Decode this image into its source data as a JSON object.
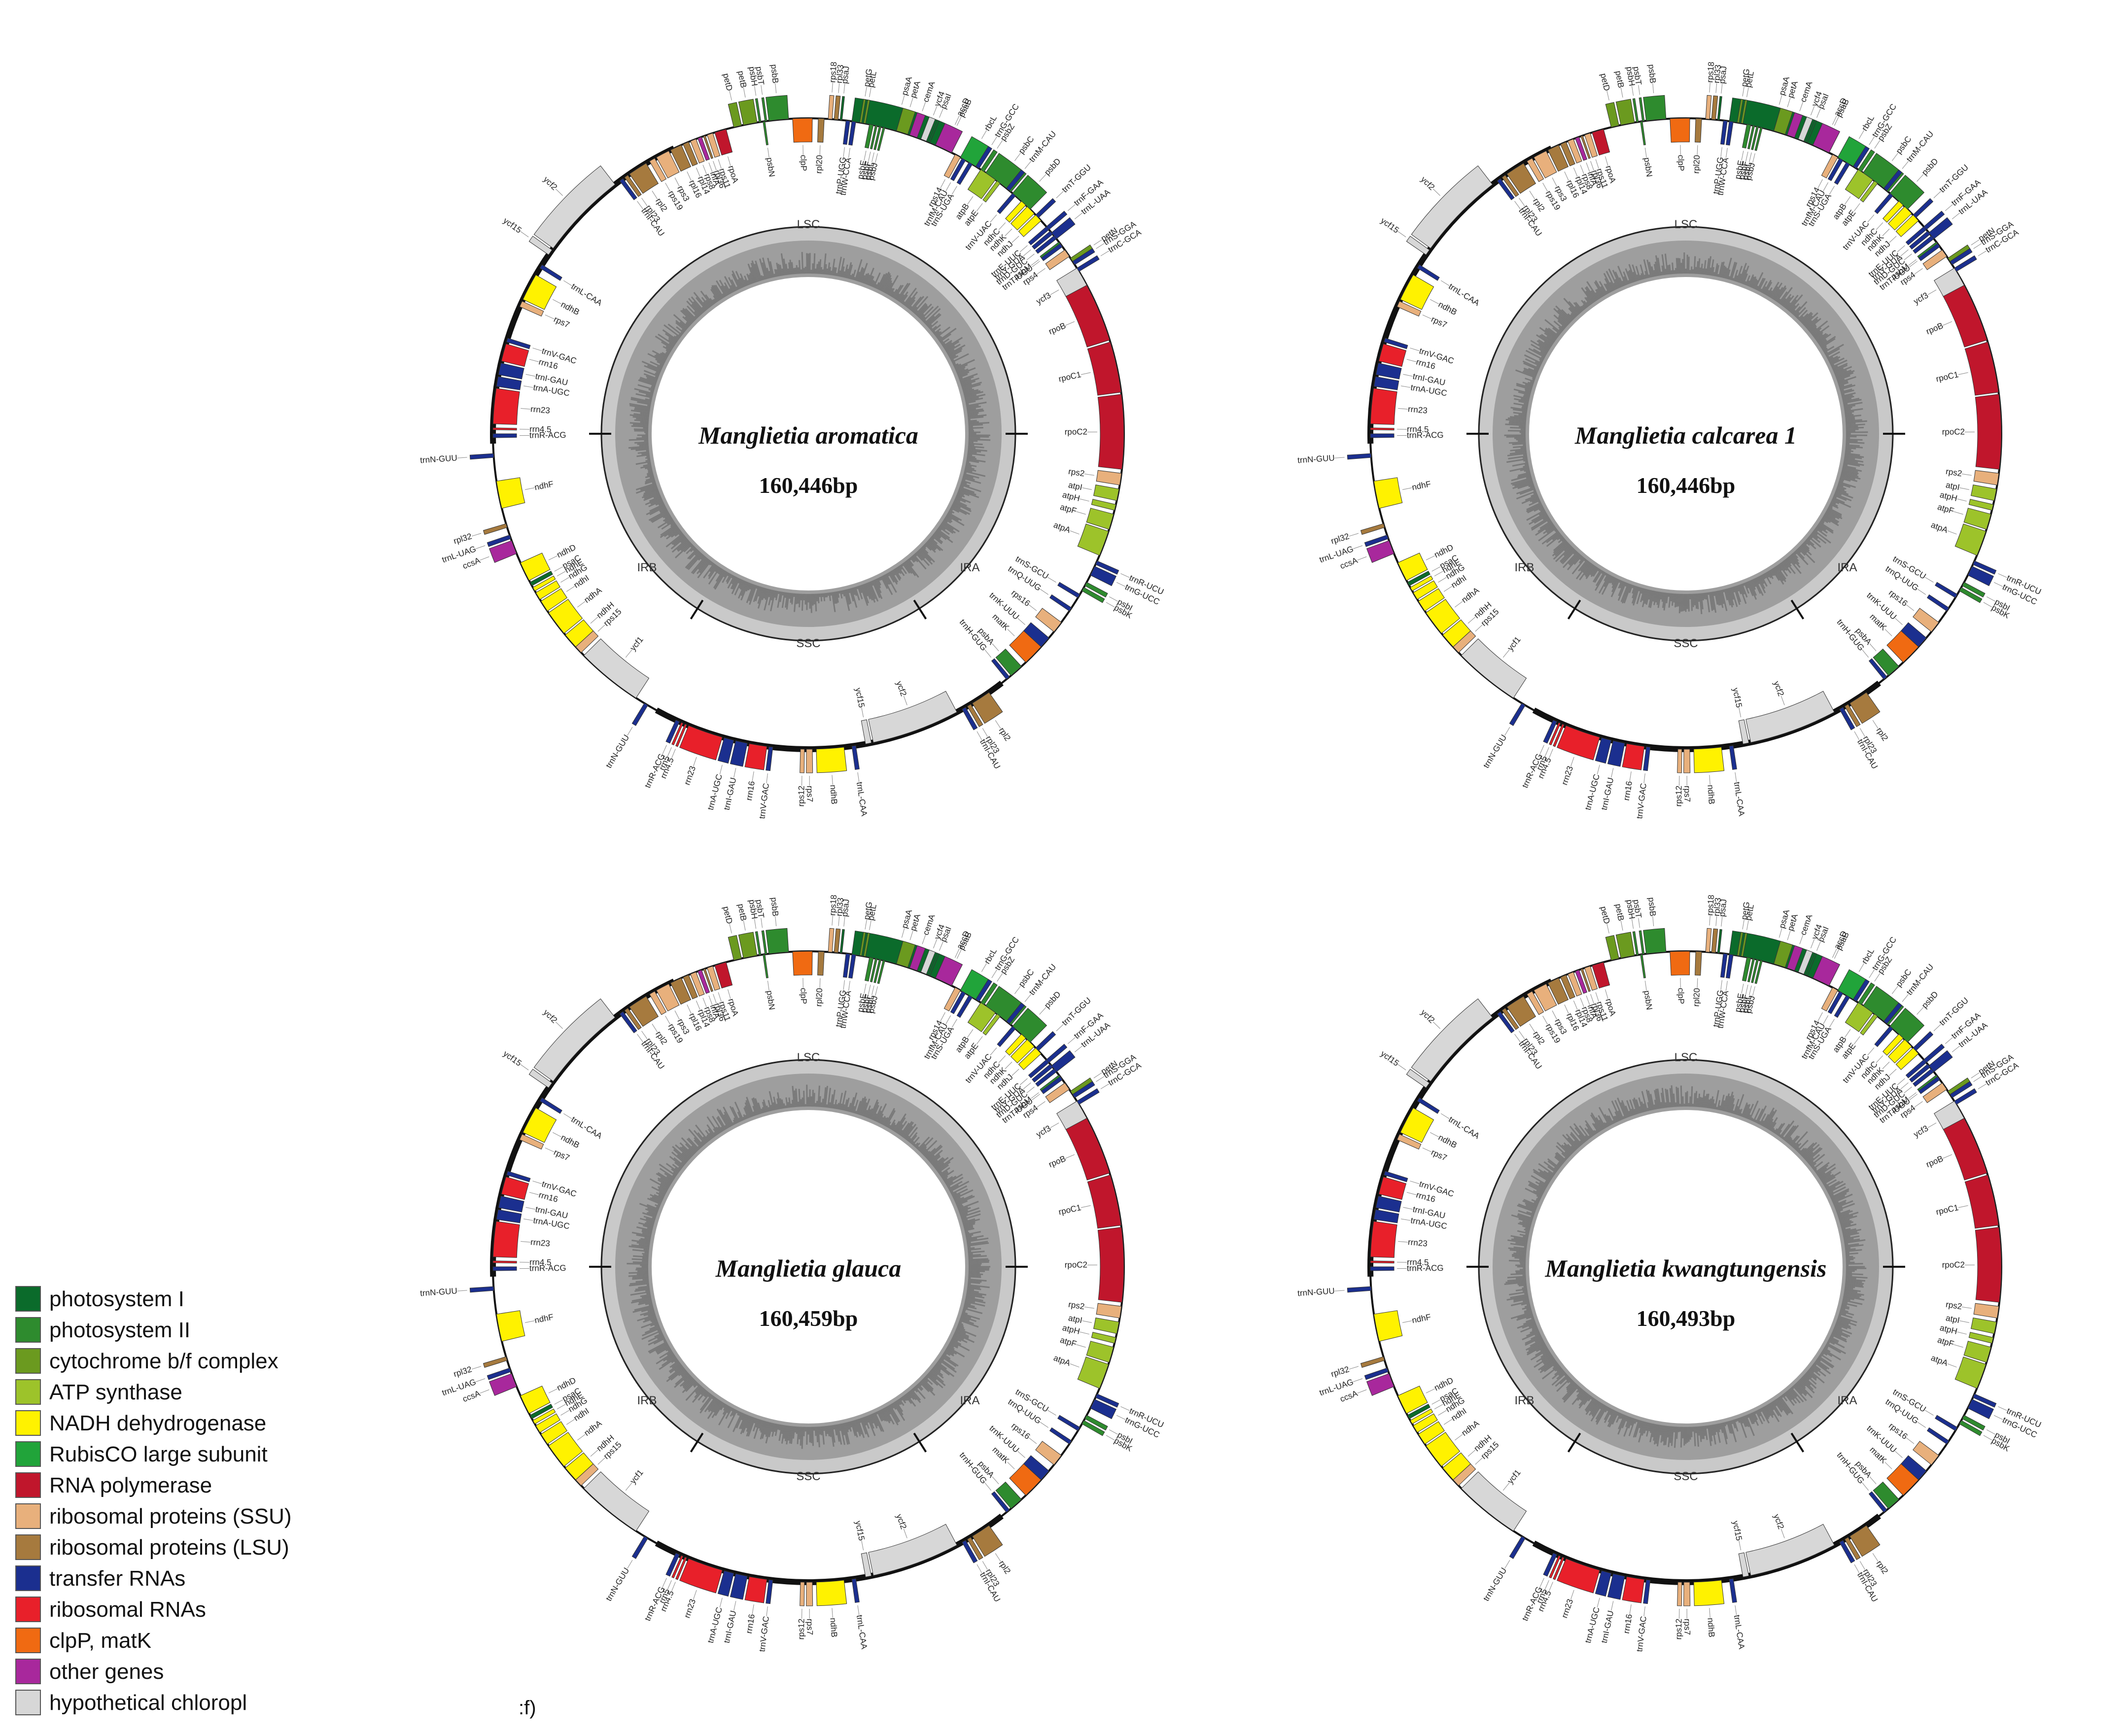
{
  "figure": {
    "panel_label": ":f)",
    "region_labels": [
      "LSC",
      "IRA",
      "SSC",
      "IRB"
    ]
  },
  "maps": [
    {
      "species": "Manglietia aromatica",
      "size": "160,446bp"
    },
    {
      "species": "Manglietia calcarea 1",
      "size": "160,446bp"
    },
    {
      "species": "Manglietia glauca",
      "size": "160,459bp"
    },
    {
      "species": "Manglietia kwangtungensis",
      "size": "160,493bp"
    }
  ],
  "legend": [
    {
      "key": "psI",
      "label": "photosystem I",
      "color": "#0b6b2b"
    },
    {
      "key": "psII",
      "label": "photosystem II",
      "color": "#2e8b2e"
    },
    {
      "key": "cyt",
      "label": "cytochrome b/f complex",
      "color": "#6b9a1f"
    },
    {
      "key": "atp",
      "label": "ATP synthase",
      "color": "#9dc32a"
    },
    {
      "key": "ndh",
      "label": "NADH dehydrogenase",
      "color": "#fff200"
    },
    {
      "key": "rbc",
      "label": "RubisCO large subunit",
      "color": "#21a43a"
    },
    {
      "key": "rpo",
      "label": "RNA polymerase",
      "color": "#c0162c"
    },
    {
      "key": "ssu",
      "label": "ribosomal proteins (SSU)",
      "color": "#e8b07c"
    },
    {
      "key": "lsu",
      "label": "ribosomal proteins (LSU)",
      "color": "#a67a3e"
    },
    {
      "key": "trna",
      "label": "transfer RNAs",
      "color": "#1b2f8f"
    },
    {
      "key": "rrna",
      "label": "ribosomal RNAs",
      "color": "#e8202a"
    },
    {
      "key": "clp",
      "label": "clpP, matK",
      "color": "#f06a12"
    },
    {
      "key": "other",
      "label": "other genes",
      "color": "#a8289c"
    },
    {
      "key": "hyp",
      "label": "hypothetical chloropl",
      "color": "#d7d7d7"
    }
  ],
  "genes": [
    {
      "name": "psaA",
      "start": 0.022,
      "len": 0.044,
      "cat": "psI",
      "side": "out"
    },
    {
      "name": "psaB",
      "start": 0.068,
      "len": 0.007,
      "cat": "psII",
      "side": "out"
    },
    {
      "name": "rps14",
      "start": 0.077,
      "len": 0.003,
      "cat": "ssu",
      "side": "in"
    },
    {
      "name": "trnfM-CAU",
      "start": 0.081,
      "len": 0.002,
      "cat": "trna",
      "side": "in"
    },
    {
      "name": "trnS-UGA",
      "start": 0.085,
      "len": 0.002,
      "cat": "trna",
      "side": "in"
    },
    {
      "name": "trnG-GCC",
      "start": 0.089,
      "len": 0.002,
      "cat": "trna",
      "side": "out"
    },
    {
      "name": "psbZ",
      "start": 0.092,
      "len": 0.002,
      "cat": "psII",
      "side": "out"
    },
    {
      "name": "psbC",
      "start": 0.095,
      "len": 0.016,
      "cat": "psII",
      "side": "out"
    },
    {
      "name": "psbD",
      "start": 0.112,
      "len": 0.012,
      "cat": "psII",
      "side": "out"
    },
    {
      "name": "trnT-GGU",
      "start": 0.128,
      "len": 0.002,
      "cat": "trna",
      "side": "out"
    },
    {
      "name": "trnE-UUC",
      "start": 0.136,
      "len": 0.002,
      "cat": "trna",
      "side": "in"
    },
    {
      "name": "trnY-GUA",
      "start": 0.139,
      "len": 0.002,
      "cat": "trna",
      "side": "in"
    },
    {
      "name": "trnD-GUC",
      "start": 0.142,
      "len": 0.002,
      "cat": "trna",
      "side": "in"
    },
    {
      "name": "psbM",
      "start": 0.146,
      "len": 0.002,
      "cat": "psII",
      "side": "in"
    },
    {
      "name": "petN",
      "start": 0.156,
      "len": 0.002,
      "cat": "cyt",
      "side": "out"
    },
    {
      "name": "trnC-GCA",
      "start": 0.162,
      "len": 0.002,
      "cat": "trna",
      "side": "out"
    },
    {
      "name": "rpoB",
      "start": 0.171,
      "len": 0.031,
      "cat": "rpo",
      "side": "in"
    },
    {
      "name": "rpoC1",
      "start": 0.203,
      "len": 0.026,
      "cat": "rpo",
      "side": "in"
    },
    {
      "name": "rpoC2",
      "start": 0.23,
      "len": 0.038,
      "cat": "rpo",
      "side": "in"
    },
    {
      "name": "rps2",
      "start": 0.27,
      "len": 0.006,
      "cat": "ssu",
      "side": "in"
    },
    {
      "name": "atpI",
      "start": 0.278,
      "len": 0.006,
      "cat": "atp",
      "side": "in"
    },
    {
      "name": "atpH",
      "start": 0.286,
      "len": 0.003,
      "cat": "atp",
      "side": "in"
    },
    {
      "name": "atpF",
      "start": 0.291,
      "len": 0.008,
      "cat": "atp",
      "side": "in"
    },
    {
      "name": "atpA",
      "start": 0.3,
      "len": 0.013,
      "cat": "atp",
      "side": "in"
    },
    {
      "name": "trnR-UCU",
      "start": 0.316,
      "len": 0.002,
      "cat": "trna",
      "side": "out"
    },
    {
      "name": "trnG-UCC",
      "start": 0.319,
      "len": 0.005,
      "cat": "trna",
      "side": "out"
    },
    {
      "name": "psbI",
      "start": 0.328,
      "len": 0.002,
      "cat": "psII",
      "side": "out"
    },
    {
      "name": "psbK",
      "start": 0.331,
      "len": 0.002,
      "cat": "psII",
      "side": "out"
    },
    {
      "name": "trnS-GCU",
      "start": 0.335,
      "len": 0.002,
      "cat": "trna",
      "side": "in"
    },
    {
      "name": "trnQ-UUG",
      "start": 0.343,
      "len": 0.002,
      "cat": "trna",
      "side": "in"
    },
    {
      "name": "rps16",
      "start": 0.352,
      "len": 0.006,
      "cat": "ssu",
      "side": "in"
    },
    {
      "name": "trnK-UUU",
      "start": 0.362,
      "len": 0.006,
      "cat": "trna",
      "side": "in"
    },
    {
      "name": "matK",
      "start": 0.368,
      "len": 0.011,
      "cat": "clp",
      "side": "in"
    },
    {
      "name": "psbA",
      "start": 0.382,
      "len": 0.007,
      "cat": "psII",
      "side": "in"
    },
    {
      "name": "trnH-GUG",
      "start": 0.39,
      "len": 0.002,
      "cat": "trna",
      "side": "in"
    },
    {
      "name": "rpl2",
      "start": 0.403,
      "len": 0.01,
      "cat": "lsu",
      "side": "out"
    },
    {
      "name": "rpl23",
      "start": 0.414,
      "len": 0.002,
      "cat": "lsu",
      "side": "out"
    },
    {
      "name": "trnI-CAU",
      "start": 0.417,
      "len": 0.002,
      "cat": "trna",
      "side": "out"
    },
    {
      "name": "ycf2",
      "start": 0.422,
      "len": 0.045,
      "cat": "hyp",
      "side": "in"
    },
    {
      "name": "ycf15",
      "start": 0.468,
      "len": 0.003,
      "cat": "hyp",
      "side": "in"
    },
    {
      "name": "trnL-CAA",
      "start": 0.476,
      "len": 0.002,
      "cat": "trna",
      "side": "out"
    },
    {
      "name": "ndhB",
      "start": 0.482,
      "len": 0.014,
      "cat": "ndh",
      "side": "out"
    },
    {
      "name": "rps7",
      "start": 0.498,
      "len": 0.003,
      "cat": "ssu",
      "side": "out"
    },
    {
      "name": "rps12",
      "start": 0.502,
      "len": 0.002,
      "cat": "ssu",
      "side": "out"
    },
    {
      "name": "trnV-GAC",
      "start": 0.518,
      "len": 0.002,
      "cat": "trna",
      "side": "out"
    },
    {
      "name": "rrn16",
      "start": 0.521,
      "len": 0.009,
      "cat": "rrna",
      "side": "out"
    },
    {
      "name": "trnI-GAU",
      "start": 0.531,
      "len": 0.006,
      "cat": "trna",
      "side": "out"
    },
    {
      "name": "trnA-UGC",
      "start": 0.538,
      "len": 0.005,
      "cat": "trna",
      "side": "out"
    },
    {
      "name": "rrn23",
      "start": 0.544,
      "len": 0.018,
      "cat": "rrna",
      "side": "out"
    },
    {
      "name": "rrn4.5",
      "start": 0.563,
      "len": 0.001,
      "cat": "rrna",
      "side": "out"
    },
    {
      "name": "rrn5",
      "start": 0.565,
      "len": 0.001,
      "cat": "rrna",
      "side": "out"
    },
    {
      "name": "trnR-ACG",
      "start": 0.567,
      "len": 0.002,
      "cat": "trna",
      "side": "out"
    },
    {
      "name": "trnN-GUU",
      "start": 0.585,
      "len": 0.002,
      "cat": "trna",
      "side": "out"
    },
    {
      "name": "ycf1",
      "start": 0.592,
      "len": 0.034,
      "cat": "hyp",
      "side": "in"
    },
    {
      "name": "rps15",
      "start": 0.628,
      "len": 0.004,
      "cat": "ssu",
      "side": "in"
    },
    {
      "name": "ndhH",
      "start": 0.632,
      "len": 0.008,
      "cat": "ndh",
      "side": "in"
    },
    {
      "name": "ndhA",
      "start": 0.641,
      "len": 0.013,
      "cat": "ndh",
      "side": "in"
    },
    {
      "name": "ndhI",
      "start": 0.655,
      "len": 0.006,
      "cat": "ndh",
      "side": "in"
    },
    {
      "name": "ndhG",
      "start": 0.662,
      "len": 0.004,
      "cat": "ndh",
      "side": "in"
    },
    {
      "name": "ndhE",
      "start": 0.667,
      "len": 0.002,
      "cat": "ndh",
      "side": "in"
    },
    {
      "name": "psaC",
      "start": 0.67,
      "len": 0.002,
      "cat": "psI",
      "side": "in"
    },
    {
      "name": "ndhD",
      "start": 0.673,
      "len": 0.01,
      "cat": "ndh",
      "side": "in"
    },
    {
      "name": "ccsA",
      "start": 0.688,
      "len": 0.007,
      "cat": "other",
      "side": "out"
    },
    {
      "name": "trnL-UAG",
      "start": 0.696,
      "len": 0.002,
      "cat": "trna",
      "side": "out"
    },
    {
      "name": "rpl32",
      "start": 0.702,
      "len": 0.002,
      "cat": "lsu",
      "side": "out"
    },
    {
      "name": "ndhF",
      "start": 0.712,
      "len": 0.014,
      "cat": "ndh",
      "side": "in"
    },
    {
      "name": "trnN-GUU",
      "start": 0.738,
      "len": 0.002,
      "cat": "trna",
      "side": "out"
    },
    {
      "name": "rrn23",
      "start": 0.755,
      "len": 0.018,
      "cat": "rrna",
      "side": "in"
    },
    {
      "name": "rrn4.5",
      "start": 0.752,
      "len": 0.001,
      "cat": "rrna",
      "side": "in"
    },
    {
      "name": "trnR-ACG",
      "start": 0.748,
      "len": 0.002,
      "cat": "trna",
      "side": "in"
    },
    {
      "name": "trnA-UGC",
      "start": 0.774,
      "len": 0.005,
      "cat": "trna",
      "side": "in"
    },
    {
      "name": "trnI-GAU",
      "start": 0.78,
      "len": 0.006,
      "cat": "trna",
      "side": "in"
    },
    {
      "name": "rrn16",
      "start": 0.787,
      "len": 0.009,
      "cat": "rrna",
      "side": "in"
    },
    {
      "name": "trnV-GAC",
      "start": 0.797,
      "len": 0.002,
      "cat": "trna",
      "side": "in"
    },
    {
      "name": "rps7",
      "start": 0.816,
      "len": 0.003,
      "cat": "ssu",
      "side": "in"
    },
    {
      "name": "ndhB",
      "start": 0.82,
      "len": 0.014,
      "cat": "ndh",
      "side": "in"
    },
    {
      "name": "trnL-CAA",
      "start": 0.838,
      "len": 0.002,
      "cat": "trna",
      "side": "in"
    },
    {
      "name": "ycf15",
      "start": 0.846,
      "len": 0.003,
      "cat": "hyp",
      "side": "out"
    },
    {
      "name": "ycf2",
      "start": 0.85,
      "len": 0.045,
      "cat": "hyp",
      "side": "out"
    },
    {
      "name": "trnI-CAU",
      "start": 0.898,
      "len": 0.002,
      "cat": "trna",
      "side": "in"
    },
    {
      "name": "rpl23",
      "start": 0.901,
      "len": 0.002,
      "cat": "lsu",
      "side": "in"
    },
    {
      "name": "rpl2",
      "start": 0.904,
      "len": 0.01,
      "cat": "lsu",
      "side": "in"
    },
    {
      "name": "rps19",
      "start": 0.916,
      "len": 0.003,
      "cat": "ssu",
      "side": "in"
    },
    {
      "name": "rps3",
      "start": 0.92,
      "len": 0.007,
      "cat": "ssu",
      "side": "in"
    },
    {
      "name": "rpl16",
      "start": 0.928,
      "len": 0.006,
      "cat": "lsu",
      "side": "in"
    },
    {
      "name": "rpl14",
      "start": 0.935,
      "len": 0.003,
      "cat": "lsu",
      "side": "in"
    },
    {
      "name": "rps8",
      "start": 0.939,
      "len": 0.003,
      "cat": "ssu",
      "side": "in"
    },
    {
      "name": "infA",
      "start": 0.943,
      "len": 0.002,
      "cat": "other",
      "side": "in"
    },
    {
      "name": "rpl36",
      "start": 0.946,
      "len": 0.001,
      "cat": "lsu",
      "side": "in"
    },
    {
      "name": "rps11",
      "start": 0.948,
      "len": 0.003,
      "cat": "ssu",
      "side": "in"
    },
    {
      "name": "rpoA",
      "start": 0.952,
      "len": 0.006,
      "cat": "rpo",
      "side": "in"
    },
    {
      "name": "petD",
      "start": 0.962,
      "len": 0.004,
      "cat": "cyt",
      "side": "out"
    },
    {
      "name": "petB",
      "start": 0.967,
      "len": 0.007,
      "cat": "cyt",
      "side": "out"
    },
    {
      "name": "psbH",
      "start": 0.975,
      "len": 0.001,
      "cat": "psII",
      "side": "out"
    },
    {
      "name": "psbN",
      "start": 0.977,
      "len": 0.001,
      "cat": "psII",
      "side": "in"
    },
    {
      "name": "psbT",
      "start": 0.978,
      "len": 0.001,
      "cat": "psII",
      "side": "out"
    },
    {
      "name": "psbB",
      "start": 0.98,
      "len": 0.01,
      "cat": "psII",
      "side": "out"
    },
    {
      "name": "clpP",
      "start": 0.992,
      "len": 0.01,
      "cat": "clp",
      "side": "in"
    }
  ],
  "genes_b": [
    {
      "name": "rpl20",
      "start": 0.005,
      "len": 0.003,
      "cat": "lsu",
      "side": "in"
    },
    {
      "name": "rps18",
      "start": 0.01,
      "len": 0.002,
      "cat": "ssu",
      "side": "out"
    },
    {
      "name": "rpl33",
      "start": 0.013,
      "len": 0.002,
      "cat": "lsu",
      "side": "out"
    },
    {
      "name": "psaJ",
      "start": 0.016,
      "len": 0.001,
      "cat": "psI",
      "side": "out"
    },
    {
      "name": "trnP-UGG",
      "start": 0.019,
      "len": 0.002,
      "cat": "trna",
      "side": "in"
    },
    {
      "name": "trnW-CCA",
      "start": 0.022,
      "len": 0.002,
      "cat": "trna",
      "side": "in"
    },
    {
      "name": "petG",
      "start": 0.026,
      "len": 0.001,
      "cat": "cyt",
      "side": "out"
    },
    {
      "name": "petL",
      "start": 0.028,
      "len": 0.001,
      "cat": "cyt",
      "side": "out"
    },
    {
      "name": "psbE",
      "start": 0.031,
      "len": 0.002,
      "cat": "psII",
      "side": "in"
    },
    {
      "name": "psbF",
      "start": 0.034,
      "len": 0.001,
      "cat": "psII",
      "side": "in"
    },
    {
      "name": "psbL",
      "start": 0.036,
      "len": 0.001,
      "cat": "psII",
      "side": "in"
    },
    {
      "name": "psbJ",
      "start": 0.038,
      "len": 0.001,
      "cat": "psII",
      "side": "in"
    },
    {
      "name": "petA",
      "start": 0.045,
      "len": 0.006,
      "cat": "cyt",
      "side": "out"
    },
    {
      "name": "cemA",
      "start": 0.052,
      "len": 0.004,
      "cat": "other",
      "side": "out"
    },
    {
      "name": "ycf4",
      "start": 0.058,
      "len": 0.003,
      "cat": "hyp",
      "side": "out"
    },
    {
      "name": "psaI",
      "start": 0.062,
      "len": 0.001,
      "cat": "psI",
      "side": "out"
    },
    {
      "name": "accD",
      "start": 0.066,
      "len": 0.009,
      "cat": "other",
      "side": "out"
    },
    {
      "name": "rbcL",
      "start": 0.08,
      "len": 0.009,
      "cat": "rbc",
      "side": "out"
    },
    {
      "name": "atpB",
      "start": 0.092,
      "len": 0.009,
      "cat": "atp",
      "side": "in"
    },
    {
      "name": "atpE",
      "start": 0.102,
      "len": 0.002,
      "cat": "atp",
      "side": "in"
    },
    {
      "name": "trnM-CAU",
      "start": 0.108,
      "len": 0.002,
      "cat": "trna",
      "side": "out"
    },
    {
      "name": "trnV-UAC",
      "start": 0.112,
      "len": 0.002,
      "cat": "trna",
      "side": "in"
    },
    {
      "name": "ndhC",
      "start": 0.118,
      "len": 0.003,
      "cat": "ndh",
      "side": "in"
    },
    {
      "name": "ndhK",
      "start": 0.122,
      "len": 0.005,
      "cat": "ndh",
      "side": "in"
    },
    {
      "name": "ndhJ",
      "start": 0.128,
      "len": 0.004,
      "cat": "ndh",
      "side": "in"
    },
    {
      "name": "trnF-GAA",
      "start": 0.136,
      "len": 0.002,
      "cat": "trna",
      "side": "out"
    },
    {
      "name": "trnL-UAA",
      "start": 0.14,
      "len": 0.004,
      "cat": "trna",
      "side": "out"
    },
    {
      "name": "trnT-UGU",
      "start": 0.147,
      "len": 0.002,
      "cat": "trna",
      "side": "in"
    },
    {
      "name": "rps4",
      "start": 0.151,
      "len": 0.004,
      "cat": "ssu",
      "side": "in"
    },
    {
      "name": "trnS-GGA",
      "start": 0.158,
      "len": 0.002,
      "cat": "trna",
      "side": "out"
    },
    {
      "name": "ycf3",
      "start": 0.162,
      "len": 0.01,
      "cat": "hyp",
      "side": "in"
    }
  ]
}
